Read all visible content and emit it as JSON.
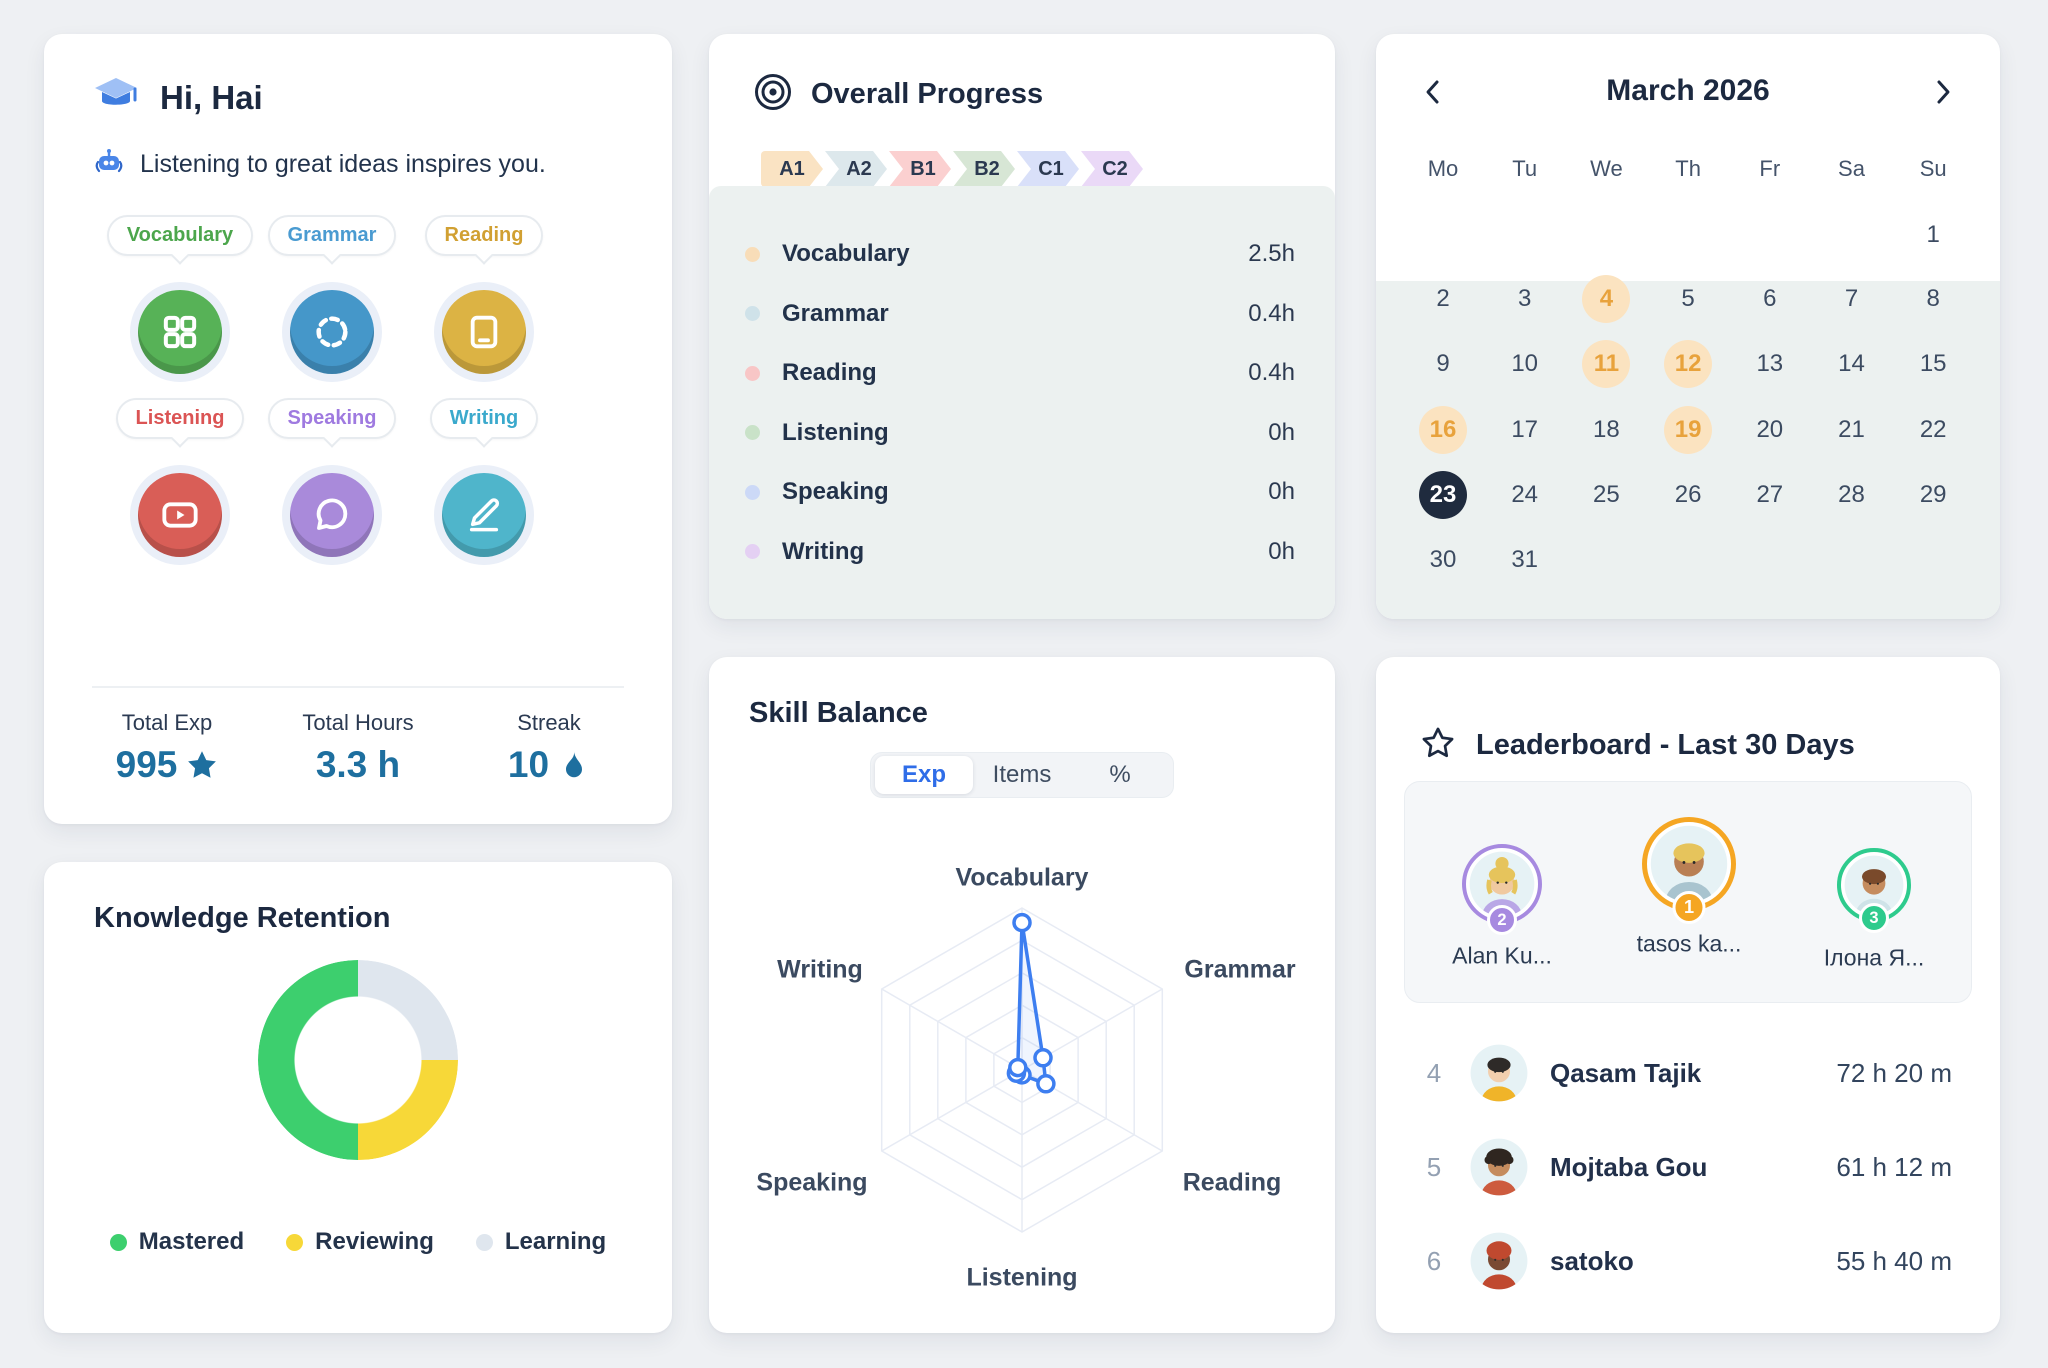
{
  "greeting": {
    "title": "Hi, Hai",
    "subtitle": "Listening to great ideas inspires you.",
    "skills": [
      {
        "label": "Vocabulary",
        "icon": "grid-icon",
        "chip_color": "#4ca64c",
        "circle_color": "#57b257"
      },
      {
        "label": "Grammar",
        "icon": "dashed-circle-icon",
        "chip_color": "#4a9bd1",
        "circle_color": "#4597c9"
      },
      {
        "label": "Reading",
        "icon": "tablet-icon",
        "chip_color": "#d1a032",
        "circle_color": "#dcb344"
      },
      {
        "label": "Listening",
        "icon": "video-icon",
        "chip_color": "#db5454",
        "circle_color": "#d95e57"
      },
      {
        "label": "Speaking",
        "icon": "chat-icon",
        "chip_color": "#9f7ae0",
        "circle_color": "#a98ada"
      },
      {
        "label": "Writing",
        "icon": "pen-icon",
        "chip_color": "#3aa9cc",
        "circle_color": "#4fb5cb"
      }
    ],
    "stats": [
      {
        "label": "Total Exp",
        "value": "995",
        "icon": "star-icon"
      },
      {
        "label": "Total Hours",
        "value": "3.3 h",
        "icon": ""
      },
      {
        "label": "Streak",
        "value": "10",
        "icon": "flame-icon"
      }
    ],
    "value_color": "#1e6f9f"
  },
  "overall_progress": {
    "title": "Overall Progress",
    "levels": [
      {
        "label": "A1",
        "color": "#fae3c3"
      },
      {
        "label": "A2",
        "color": "#dde8ec"
      },
      {
        "label": "B1",
        "color": "#fbd0d0"
      },
      {
        "label": "B2",
        "color": "#d7e6d5"
      },
      {
        "label": "C1",
        "color": "#d9e0f9"
      },
      {
        "label": "C2",
        "color": "#ead9f7"
      }
    ],
    "skills": [
      {
        "label": "Vocabulary",
        "hours": "2.5h",
        "dot": "#f8ddb8"
      },
      {
        "label": "Grammar",
        "hours": "0.4h",
        "dot": "#cfe2e9"
      },
      {
        "label": "Reading",
        "hours": "0.4h",
        "dot": "#f8c6c6"
      },
      {
        "label": "Listening",
        "hours": "0h",
        "dot": "#c9e2c8"
      },
      {
        "label": "Speaking",
        "hours": "0h",
        "dot": "#ccd9f7"
      },
      {
        "label": "Writing",
        "hours": "0h",
        "dot": "#e4d0f3"
      }
    ]
  },
  "calendar": {
    "title": "March 2026",
    "weekdays": [
      "Mo",
      "Tu",
      "We",
      "Th",
      "Fr",
      "Sa",
      "Su"
    ],
    "first_day_col": 7,
    "days_in_month": 31,
    "highlighted_days": [
      4,
      11,
      12,
      16,
      19
    ],
    "today": 23,
    "highlight_bg": "#fbe3c0",
    "highlight_text": "#e8a23c",
    "today_bg": "#1f2b3e"
  },
  "retention": {
    "title": "Knowledge Retention",
    "legend": [
      {
        "label": "Mastered",
        "color": "#3dcf6e"
      },
      {
        "label": "Reviewing",
        "color": "#f7d838"
      },
      {
        "label": "Learning",
        "color": "#dfe6ee"
      }
    ]
  },
  "skill_balance": {
    "title": "Skill Balance",
    "tabs": [
      "Exp",
      "Items",
      "%"
    ],
    "active_tab": "Exp",
    "axes": [
      "Vocabulary",
      "Grammar",
      "Reading",
      "Listening",
      "Speaking",
      "Writing"
    ],
    "values_pct": [
      91,
      15,
      17,
      3,
      4,
      3
    ],
    "line_color": "#3d7ef0",
    "grid_color": "#e7ebf4"
  },
  "leaderboard": {
    "title": "Leaderboard - Last 30 Days",
    "podium": [
      {
        "rank": "2",
        "name": "Alan Ku...",
        "ring_color": "#a78ae0",
        "avatar": {
          "skin": "#f0c9a0",
          "hair": "#e6c45c",
          "shirt": "#b9a7e6",
          "style": "updo"
        }
      },
      {
        "rank": "1",
        "name": "tasos ka...",
        "ring_color": "#f5a623",
        "avatar": {
          "skin": "#b97f54",
          "hair": "#e6c45c",
          "shirt": "#a9c4cf",
          "style": "short"
        }
      },
      {
        "rank": "3",
        "name": "Ілона Я...",
        "ring_color": "#2ecb8d",
        "avatar": {
          "skin": "#c58c5e",
          "hair": "#7a4a2b",
          "shirt": "#cfe3e8",
          "style": "short"
        }
      }
    ],
    "rows": [
      {
        "rank": "4",
        "name": "Qasam Tajik",
        "time": "72 h 20 m",
        "avatar": {
          "skin": "#f2cfae",
          "hair": "#2e2a28",
          "shirt": "#f0b429",
          "style": "short"
        }
      },
      {
        "rank": "5",
        "name": "Mojtaba Gou",
        "time": "61 h 12 m",
        "avatar": {
          "skin": "#c58c5e",
          "hair": "#2f2620",
          "shirt": "#cd5b3e",
          "style": "curly"
        }
      },
      {
        "rank": "6",
        "name": "satoko",
        "time": "55 h 40 m",
        "avatar": {
          "skin": "#7a4a33",
          "hair": "#c0492f",
          "shirt": "#c0492f",
          "style": "wrap"
        }
      }
    ]
  },
  "chart_data": [
    {
      "type": "pie",
      "title": "Knowledge Retention",
      "labels": [
        "Mastered",
        "Reviewing",
        "Learning"
      ],
      "values": [
        50,
        25,
        25
      ],
      "colors": [
        "#3dcf6e",
        "#f7d838",
        "#dfe6ee"
      ],
      "donut": true,
      "order_from_top_clockwise": [
        "Learning",
        "Reviewing",
        "Mastered"
      ]
    },
    {
      "type": "radar",
      "title": "Skill Balance",
      "mode": "Exp",
      "axes": [
        "Vocabulary",
        "Grammar",
        "Reading",
        "Listening",
        "Speaking",
        "Writing"
      ],
      "values_pct_of_max": [
        91,
        15,
        17,
        3,
        4,
        3
      ],
      "rings": 5,
      "legend_position": "none"
    }
  ]
}
